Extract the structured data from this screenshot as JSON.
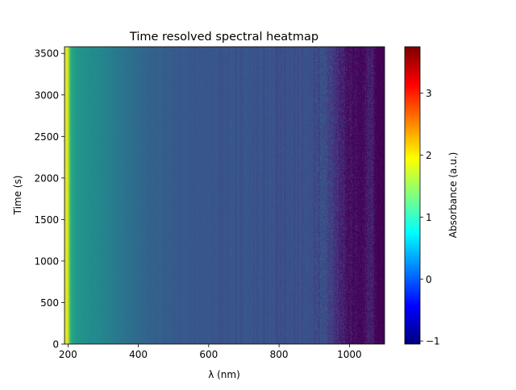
{
  "chart_data": {
    "type": "heatmap",
    "title": "Time resolved spectral heatmap",
    "xlabel": "λ (nm)",
    "ylabel": "Time (s)",
    "colorbar_label": "Absorbance (a.u.)",
    "colormap": "jet",
    "xlim": [
      190,
      1100
    ],
    "ylim": [
      0,
      3580
    ],
    "clim": [
      -1.05,
      3.75
    ],
    "x_ticks": [
      200,
      400,
      600,
      800,
      1000
    ],
    "y_ticks": [
      0,
      500,
      1000,
      1500,
      2000,
      2500,
      3000,
      3500
    ],
    "colorbar_ticks": [
      -1,
      0,
      1,
      2,
      3
    ],
    "grid": false,
    "spectrum_profile": {
      "wavelength_nm": [
        190,
        195,
        200,
        205,
        210,
        230,
        260,
        290,
        320,
        350,
        380,
        420,
        470,
        520,
        580,
        640,
        700,
        760,
        820,
        880,
        930,
        960,
        980,
        1000,
        1040,
        1060,
        1080,
        1100
      ],
      "absorbance": [
        1.85,
        2.05,
        1.95,
        1.5,
        1.2,
        1.05,
        0.98,
        0.92,
        0.85,
        0.78,
        0.7,
        0.62,
        0.56,
        0.52,
        0.5,
        0.48,
        0.47,
        0.46,
        0.45,
        0.44,
        0.4,
        0.25,
        0.08,
        0.0,
        -0.05,
        0.15,
        -0.15,
        -0.1
      ]
    }
  }
}
